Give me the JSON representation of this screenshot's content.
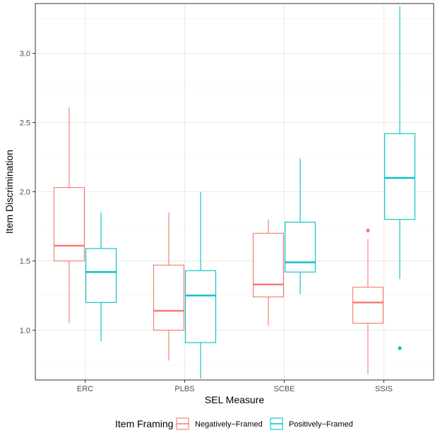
{
  "chart_data": {
    "type": "boxplot",
    "xlabel": "SEL Measure",
    "ylabel": "Item Discrimination",
    "ylim": [
      0.64,
      3.36
    ],
    "yticks": [
      1.0,
      1.5,
      2.0,
      2.5,
      3.0
    ],
    "ytick_labels": [
      "1.0",
      "1.5",
      "2.0",
      "2.5",
      "3.0"
    ],
    "categories": [
      "ERC",
      "PLBS",
      "SCBE",
      "SSIS"
    ],
    "legend": {
      "title": "Item Framing",
      "position": "bottom"
    },
    "series": [
      {
        "name": "Negatively−Framed",
        "color": "#F8766D",
        "boxes": [
          {
            "category": "ERC",
            "whisker_low": 1.05,
            "q1": 1.5,
            "median": 1.61,
            "q3": 2.03,
            "whisker_high": 2.61,
            "outliers": []
          },
          {
            "category": "PLBS",
            "whisker_low": 0.78,
            "q1": 1.0,
            "median": 1.14,
            "q3": 1.47,
            "whisker_high": 1.85,
            "outliers": []
          },
          {
            "category": "SCBE",
            "whisker_low": 1.03,
            "q1": 1.24,
            "median": 1.33,
            "q3": 1.7,
            "whisker_high": 1.8,
            "outliers": []
          },
          {
            "category": "SSIS",
            "whisker_low": 0.68,
            "q1": 1.05,
            "median": 1.2,
            "q3": 1.31,
            "whisker_high": 1.66,
            "outliers": [
              1.72
            ]
          }
        ]
      },
      {
        "name": "Positively−Framed",
        "color": "#00BFC4",
        "boxes": [
          {
            "category": "ERC",
            "whisker_low": 0.92,
            "q1": 1.2,
            "median": 1.42,
            "q3": 1.59,
            "whisker_high": 1.85,
            "outliers": []
          },
          {
            "category": "PLBS",
            "whisker_low": 0.65,
            "q1": 0.91,
            "median": 1.25,
            "q3": 1.43,
            "whisker_high": 2.0,
            "outliers": []
          },
          {
            "category": "SCBE",
            "whisker_low": 1.26,
            "q1": 1.42,
            "median": 1.49,
            "q3": 1.78,
            "whisker_high": 2.24,
            "outliers": []
          },
          {
            "category": "SSIS",
            "whisker_low": 1.37,
            "q1": 1.8,
            "median": 2.1,
            "q3": 2.42,
            "whisker_high": 3.34,
            "outliers": [
              0.87
            ]
          }
        ]
      }
    ]
  }
}
